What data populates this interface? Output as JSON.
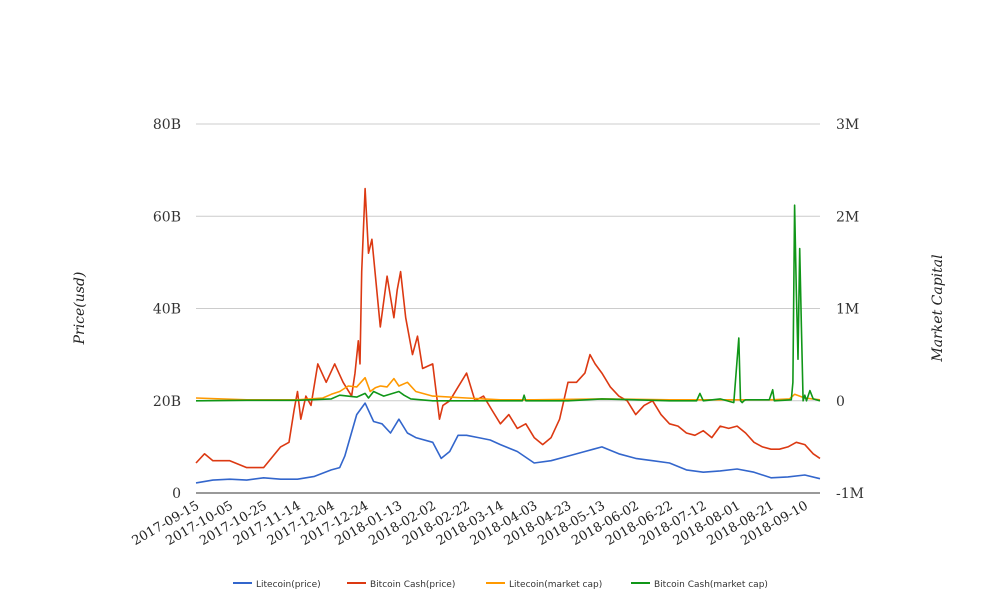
{
  "chart_data": {
    "type": "line",
    "title": "",
    "ylabel_left": "Price(usd)",
    "ylabel_right": "Market Capital",
    "ylim_left": [
      0,
      80000000000
    ],
    "ylim_right": [
      -1000000,
      3000000
    ],
    "yticks_left": [
      {
        "value": 0,
        "label": "0"
      },
      {
        "value": 20000000000,
        "label": "20B"
      },
      {
        "value": 40000000000,
        "label": "40B"
      },
      {
        "value": 60000000000,
        "label": "60B"
      },
      {
        "value": 80000000000,
        "label": "80B"
      }
    ],
    "yticks_right": [
      {
        "value": -1000000,
        "label": "-1M"
      },
      {
        "value": 0,
        "label": "0"
      },
      {
        "value": 1000000,
        "label": "1M"
      },
      {
        "value": 2000000,
        "label": "2M"
      },
      {
        "value": 3000000,
        "label": "3M"
      }
    ],
    "xlim": [
      "2017-09-15",
      "2018-09-19"
    ],
    "xticks": [
      "2017-09-15",
      "2017-10-05",
      "2017-10-25",
      "2017-11-14",
      "2017-12-04",
      "2017-12-24",
      "2018-01-13",
      "2018-02-02",
      "2018-02-22",
      "2018-03-14",
      "2018-04-03",
      "2018-04-23",
      "2018-05-13",
      "2018-06-02",
      "2018-06-22",
      "2018-07-12",
      "2018-08-01",
      "2018-08-21",
      "2018-09-10"
    ],
    "grid": true,
    "legend_position": "bottom",
    "series": [
      {
        "name": "Litecoin(price)",
        "color": "#3366cc",
        "axis": "left",
        "x": [
          "2017-09-15",
          "2017-09-25",
          "2017-10-05",
          "2017-10-15",
          "2017-10-25",
          "2017-11-04",
          "2017-11-14",
          "2017-11-24",
          "2017-12-04",
          "2017-12-09",
          "2017-12-12",
          "2017-12-19",
          "2017-12-24",
          "2017-12-29",
          "2018-01-03",
          "2018-01-08",
          "2018-01-13",
          "2018-01-18",
          "2018-01-23",
          "2018-02-02",
          "2018-02-07",
          "2018-02-12",
          "2018-02-17",
          "2018-02-22",
          "2018-03-01",
          "2018-03-08",
          "2018-03-14",
          "2018-03-24",
          "2018-04-03",
          "2018-04-13",
          "2018-04-23",
          "2018-05-03",
          "2018-05-08",
          "2018-05-13",
          "2018-05-23",
          "2018-06-02",
          "2018-06-12",
          "2018-06-22",
          "2018-07-02",
          "2018-07-12",
          "2018-07-22",
          "2018-08-01",
          "2018-08-11",
          "2018-08-21",
          "2018-08-31",
          "2018-09-10",
          "2018-09-19"
        ],
        "values": [
          2200000000,
          2800000000,
          3000000000,
          2800000000,
          3300000000,
          3000000000,
          3000000000,
          3600000000,
          5000000000,
          5500000000,
          8000000000,
          17000000000,
          19500000000,
          15500000000,
          15000000000,
          13000000000,
          16000000000,
          13000000000,
          12000000000,
          11000000000,
          7500000000,
          9000000000,
          12500000000,
          12500000000,
          12000000000,
          11500000000,
          10500000000,
          9000000000,
          6500000000,
          7000000000,
          8000000000,
          9000000000,
          9500000000,
          10000000000,
          8500000000,
          7500000000,
          7000000000,
          6500000000,
          5000000000,
          4500000000,
          4800000000,
          5200000000,
          4500000000,
          3300000000,
          3500000000,
          3900000000,
          3100000000
        ]
      },
      {
        "name": "Bitcoin Cash(price)",
        "color": "#dc3912",
        "axis": "left",
        "x": [
          "2017-09-15",
          "2017-09-20",
          "2017-09-25",
          "2017-10-05",
          "2017-10-15",
          "2017-10-25",
          "2017-11-04",
          "2017-11-09",
          "2017-11-12",
          "2017-11-14",
          "2017-11-16",
          "2017-11-19",
          "2017-11-22",
          "2017-11-26",
          "2017-12-01",
          "2017-12-06",
          "2017-12-11",
          "2017-12-16",
          "2017-12-18",
          "2017-12-20",
          "2017-12-21",
          "2017-12-22",
          "2017-12-24",
          "2017-12-26",
          "2017-12-28",
          "2018-01-02",
          "2018-01-06",
          "2018-01-10",
          "2018-01-12",
          "2018-01-14",
          "2018-01-17",
          "2018-01-21",
          "2018-01-24",
          "2018-01-27",
          "2018-02-02",
          "2018-02-06",
          "2018-02-08",
          "2018-02-12",
          "2018-02-17",
          "2018-02-22",
          "2018-02-27",
          "2018-03-04",
          "2018-03-09",
          "2018-03-14",
          "2018-03-19",
          "2018-03-24",
          "2018-03-29",
          "2018-04-03",
          "2018-04-08",
          "2018-04-13",
          "2018-04-18",
          "2018-04-23",
          "2018-04-28",
          "2018-05-03",
          "2018-05-06",
          "2018-05-09",
          "2018-05-13",
          "2018-05-18",
          "2018-05-23",
          "2018-05-28",
          "2018-06-02",
          "2018-06-07",
          "2018-06-12",
          "2018-06-17",
          "2018-06-22",
          "2018-06-27",
          "2018-07-02",
          "2018-07-07",
          "2018-07-12",
          "2018-07-17",
          "2018-07-22",
          "2018-07-27",
          "2018-08-01",
          "2018-08-06",
          "2018-08-11",
          "2018-08-16",
          "2018-08-21",
          "2018-08-26",
          "2018-08-31",
          "2018-09-05",
          "2018-09-10",
          "2018-09-15",
          "2018-09-19"
        ],
        "values": [
          6500000000,
          8500000000,
          7000000000,
          7000000000,
          5500000000,
          5500000000,
          10000000000,
          11000000000,
          18000000000,
          22000000000,
          16000000000,
          21000000000,
          19000000000,
          28000000000,
          24000000000,
          28000000000,
          24000000000,
          21000000000,
          26000000000,
          33000000000,
          28000000000,
          48000000000,
          66000000000,
          52000000000,
          55000000000,
          36000000000,
          47000000000,
          38000000000,
          44000000000,
          48000000000,
          38000000000,
          30000000000,
          34000000000,
          27000000000,
          28000000000,
          16000000000,
          19000000000,
          20000000000,
          23000000000,
          26000000000,
          20000000000,
          21000000000,
          18000000000,
          15000000000,
          17000000000,
          14000000000,
          15000000000,
          12000000000,
          10500000000,
          12000000000,
          16000000000,
          24000000000,
          24000000000,
          26000000000,
          30000000000,
          28000000000,
          26000000000,
          23000000000,
          21000000000,
          20000000000,
          17000000000,
          19000000000,
          20000000000,
          17000000000,
          15000000000,
          14500000000,
          13000000000,
          12500000000,
          13500000000,
          12000000000,
          14500000000,
          14000000000,
          14500000000,
          13000000000,
          11000000000,
          10000000000,
          9500000000,
          9500000000,
          10000000000,
          11000000000,
          10500000000,
          8500000000,
          7500000000
        ]
      },
      {
        "name": "Litecoin(market cap)",
        "color": "#ff9900",
        "axis": "right",
        "x": [
          "2017-09-15",
          "2017-10-15",
          "2017-11-14",
          "2017-11-29",
          "2017-12-04",
          "2017-12-09",
          "2017-12-14",
          "2017-12-19",
          "2017-12-24",
          "2017-12-27",
          "2017-12-30",
          "2018-01-02",
          "2018-01-06",
          "2018-01-10",
          "2018-01-13",
          "2018-01-18",
          "2018-01-23",
          "2018-02-02",
          "2018-02-22",
          "2018-03-14",
          "2018-04-03",
          "2018-05-13",
          "2018-06-22",
          "2018-08-01",
          "2018-08-21",
          "2018-09-01",
          "2018-09-04",
          "2018-09-10",
          "2018-09-19"
        ],
        "values": [
          30000,
          10000,
          10000,
          30000,
          70000,
          100000,
          160000,
          150000,
          250000,
          100000,
          140000,
          160000,
          150000,
          240000,
          160000,
          200000,
          100000,
          50000,
          30000,
          10000,
          10000,
          20000,
          10000,
          10000,
          10000,
          20000,
          70000,
          30000,
          10000
        ]
      },
      {
        "name": "Bitcoin Cash(market cap)",
        "color": "#109618",
        "axis": "right",
        "x": [
          "2017-09-15",
          "2017-10-15",
          "2017-11-14",
          "2017-12-04",
          "2017-12-09",
          "2017-12-19",
          "2017-12-24",
          "2017-12-26",
          "2017-12-29",
          "2018-01-04",
          "2018-01-13",
          "2018-01-16",
          "2018-01-20",
          "2018-02-02",
          "2018-03-14",
          "2018-03-27",
          "2018-03-28",
          "2018-03-29",
          "2018-04-23",
          "2018-05-13",
          "2018-06-22",
          "2018-07-08",
          "2018-07-10",
          "2018-07-12",
          "2018-07-22",
          "2018-07-30",
          "2018-08-02",
          "2018-08-03",
          "2018-08-04",
          "2018-08-05",
          "2018-08-06",
          "2018-08-20",
          "2018-08-22",
          "2018-08-23",
          "2018-09-02",
          "2018-09-03",
          "2018-09-04",
          "2018-09-05",
          "2018-09-06",
          "2018-09-07",
          "2018-09-08",
          "2018-09-09",
          "2018-09-10",
          "2018-09-11",
          "2018-09-13",
          "2018-09-15",
          "2018-09-19"
        ],
        "values": [
          0,
          5000,
          5000,
          20000,
          60000,
          40000,
          80000,
          30000,
          100000,
          50000,
          100000,
          60000,
          20000,
          0,
          0,
          0,
          60000,
          0,
          0,
          20000,
          0,
          0,
          80000,
          0,
          20000,
          -20000,
          680000,
          0,
          -20000,
          0,
          10000,
          10000,
          120000,
          0,
          10000,
          200000,
          2120000,
          1200000,
          450000,
          1650000,
          800000,
          0,
          60000,
          0,
          110000,
          20000,
          0
        ]
      }
    ]
  }
}
